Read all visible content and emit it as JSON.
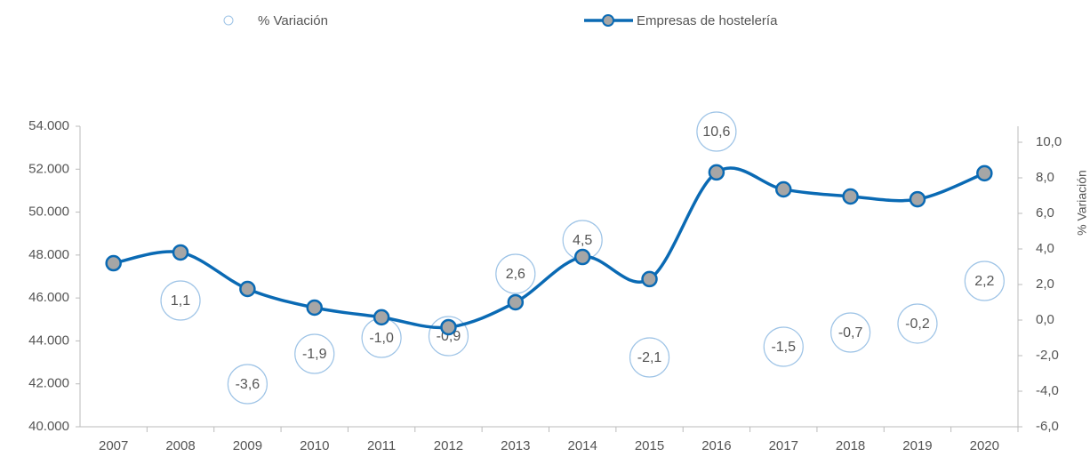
{
  "chart_data": {
    "type": "line",
    "y2label": "% Variación",
    "categories": [
      "2007",
      "2008",
      "2009",
      "2010",
      "2011",
      "2012",
      "2013",
      "2014",
      "2015",
      "2016",
      "2017",
      "2018",
      "2019",
      "2020"
    ],
    "series": [
      {
        "name": "% Variación",
        "color": "#9dc3e6",
        "axis": "y2",
        "values": [
          null,
          1.1,
          -3.6,
          -1.9,
          -1.0,
          -0.9,
          2.6,
          4.5,
          -2.1,
          10.6,
          -1.5,
          -0.7,
          -0.2,
          2.2
        ],
        "value_labels": [
          null,
          "1,1",
          "-3,6",
          "-1,9",
          "-1,0",
          "-0,9",
          "2,6",
          "4,5",
          "-2,1",
          "10,6",
          "-1,5",
          "-0,7",
          "-0,2",
          "2,2"
        ]
      },
      {
        "name": "Empresas de hostelería",
        "color": "#0a6ab4",
        "values": [
          47620,
          48120,
          46420,
          45550,
          45100,
          44640,
          45800,
          47910,
          46880,
          51850,
          51060,
          50730,
          50600,
          51810
        ]
      }
    ],
    "ylim": [
      40000,
      54000
    ],
    "yticks": [
      {
        "value": 40000,
        "label": "40.000"
      },
      {
        "value": 42000,
        "label": "42.000"
      },
      {
        "value": 44000,
        "label": "44.000"
      },
      {
        "value": 46000,
        "label": "46.000"
      },
      {
        "value": 48000,
        "label": "48.000"
      },
      {
        "value": 50000,
        "label": "50.000"
      },
      {
        "value": 52000,
        "label": "52.000"
      },
      {
        "value": 54000,
        "label": "54.000"
      }
    ],
    "y2lim": [
      -6,
      10.9
    ],
    "y2ticks": [
      {
        "value": -6,
        "label": "-6,0"
      },
      {
        "value": -4,
        "label": "-4,0"
      },
      {
        "value": -2,
        "label": "-2,0"
      },
      {
        "value": 0,
        "label": "0,0"
      },
      {
        "value": 2,
        "label": "2,0"
      },
      {
        "value": 4,
        "label": "4,0"
      },
      {
        "value": 6,
        "label": "6,0"
      },
      {
        "value": 8,
        "label": "8,0"
      },
      {
        "value": 10,
        "label": "10,0"
      }
    ]
  }
}
